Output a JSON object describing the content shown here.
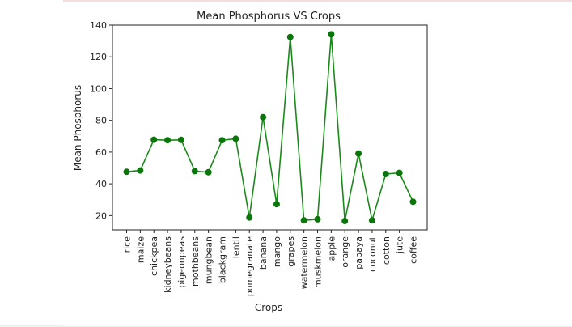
{
  "chart_data": {
    "type": "line",
    "title": "Mean Phosphorus VS Crops",
    "xlabel": "Crops",
    "ylabel": "Mean Phosphorus",
    "categories": [
      "rice",
      "maize",
      "chickpea",
      "kidneybeans",
      "pigeonpeas",
      "mothbeans",
      "mungbean",
      "blackgram",
      "lentil",
      "pomegranate",
      "banana",
      "mango",
      "grapes",
      "watermelon",
      "muskmelon",
      "apple",
      "orange",
      "papaya",
      "coconut",
      "cotton",
      "jute",
      "coffee"
    ],
    "values": [
      47.6,
      48.4,
      67.8,
      67.5,
      67.7,
      48.0,
      47.3,
      67.5,
      68.4,
      18.8,
      82.0,
      27.2,
      132.5,
      17.0,
      17.7,
      134.2,
      16.6,
      59.1,
      17.0,
      46.2,
      46.9,
      28.7
    ],
    "ylim": [
      11,
      140
    ],
    "yticks": [
      20,
      40,
      60,
      80,
      100,
      120,
      140
    ],
    "grid": false,
    "colors": {
      "line": "#1a8a1a",
      "marker": "#0a760a",
      "axes": "#222222"
    }
  }
}
